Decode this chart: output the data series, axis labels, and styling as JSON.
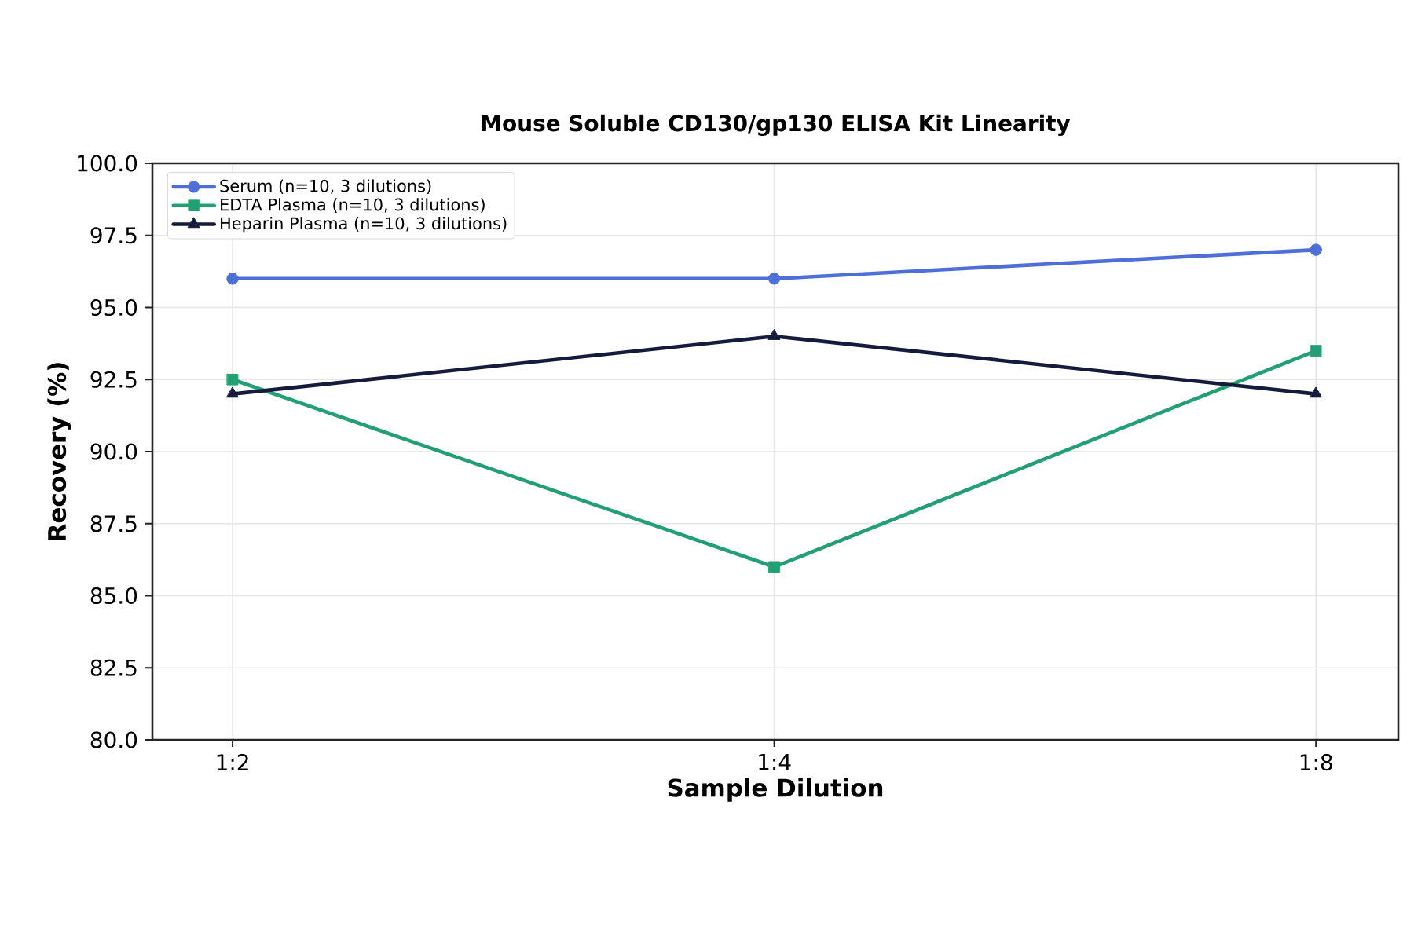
{
  "chart_data": {
    "type": "line",
    "title": "Mouse Soluble CD130/gp130 ELISA Kit Linearity",
    "xlabel": "Sample Dilution",
    "ylabel": "Recovery (%)",
    "categories": [
      "1:2",
      "1:4",
      "1:8"
    ],
    "series": [
      {
        "name": "Serum (n=10, 3 dilutions)",
        "color": "#4e6fd8",
        "marker": "circle",
        "values": [
          96.0,
          96.0,
          97.0
        ]
      },
      {
        "name": "EDTA Plasma (n=10, 3 dilutions)",
        "color": "#22a073",
        "marker": "square",
        "values": [
          92.5,
          86.0,
          93.5
        ]
      },
      {
        "name": "Heparin Plasma (n=10, 3 dilutions)",
        "color": "#141b3d",
        "marker": "triangle",
        "values": [
          92.0,
          94.0,
          92.0
        ]
      }
    ],
    "ylim": [
      80,
      100
    ],
    "yticks": [
      {
        "value": 80,
        "label": "80.0"
      },
      {
        "value": 82.5,
        "label": "82.5"
      },
      {
        "value": 85,
        "label": "85.0"
      },
      {
        "value": 87.5,
        "label": "87.5"
      },
      {
        "value": 90,
        "label": "90.0"
      },
      {
        "value": 92.5,
        "label": "92.5"
      },
      {
        "value": 95,
        "label": "95.0"
      },
      {
        "value": 97.5,
        "label": "97.5"
      },
      {
        "value": 100,
        "label": "100.0"
      }
    ],
    "grid": true,
    "legend": "top left",
    "line_style": "solid"
  }
}
